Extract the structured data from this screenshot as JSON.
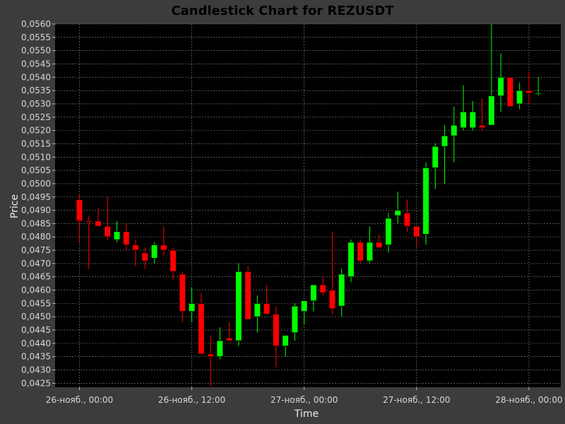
{
  "chart_data": {
    "type": "candlestick",
    "title": "Candlestick Chart for REZUSDT",
    "xlabel": "Time",
    "ylabel": "Price",
    "ylim": [
      0.04235,
      0.056
    ],
    "y_ticks": [
      "0,0425",
      "0,0430",
      "0,0435",
      "0,0440",
      "0,0445",
      "0,0450",
      "0,0455",
      "0,0460",
      "0,0465",
      "0,0470",
      "0,0475",
      "0,0480",
      "0,0485",
      "0,0490",
      "0,0495",
      "0,0500",
      "0,0505",
      "0,0510",
      "0,0515",
      "0,0520",
      "0,0525",
      "0,0530",
      "0,0535",
      "0,0540",
      "0,0545",
      "0,0550",
      "0,0555",
      "0,0560"
    ],
    "y_tick_values": [
      0.0425,
      0.043,
      0.0435,
      0.044,
      0.0445,
      0.045,
      0.0455,
      0.046,
      0.0465,
      0.047,
      0.0475,
      0.048,
      0.0485,
      0.049,
      0.0495,
      0.05,
      0.0505,
      0.051,
      0.0515,
      0.052,
      0.0525,
      0.053,
      0.0535,
      0.054,
      0.0545,
      0.055,
      0.0555,
      0.056
    ],
    "x_ticks": [
      {
        "label": "26-нояб., 00:00",
        "hours": 0
      },
      {
        "label": "26-нояб., 12:00",
        "hours": 12
      },
      {
        "label": "27-нояб., 00:00",
        "hours": 24
      },
      {
        "label": "27-нояб., 12:00",
        "hours": 36
      },
      {
        "label": "28-нояб., 00:00",
        "hours": 48
      }
    ],
    "xlim_hours": [
      -2.6,
      51.4
    ],
    "grid": true,
    "up_color": "#00ff00",
    "down_color": "#ff0000",
    "background": "#000000",
    "grid_color": "#8a8a8a",
    "candles": [
      {
        "t": 0,
        "o": 0.0494,
        "h": 0.0496,
        "l": 0.0478,
        "c": 0.0486
      },
      {
        "t": 1,
        "o": 0.0486,
        "h": 0.0488,
        "l": 0.0468,
        "c": 0.04855
      },
      {
        "t": 2,
        "o": 0.0486,
        "h": 0.0491,
        "l": 0.0484,
        "c": 0.0484
      },
      {
        "t": 3,
        "o": 0.0484,
        "h": 0.0495,
        "l": 0.0479,
        "c": 0.048
      },
      {
        "t": 4,
        "o": 0.0479,
        "h": 0.0486,
        "l": 0.0478,
        "c": 0.0482
      },
      {
        "t": 5,
        "o": 0.0482,
        "h": 0.0485,
        "l": 0.0475,
        "c": 0.0477
      },
      {
        "t": 6,
        "o": 0.0477,
        "h": 0.0479,
        "l": 0.0469,
        "c": 0.0475
      },
      {
        "t": 7,
        "o": 0.0474,
        "h": 0.0476,
        "l": 0.0468,
        "c": 0.0471
      },
      {
        "t": 8,
        "o": 0.0472,
        "h": 0.0478,
        "l": 0.047,
        "c": 0.0477
      },
      {
        "t": 9,
        "o": 0.0477,
        "h": 0.0484,
        "l": 0.0473,
        "c": 0.0475
      },
      {
        "t": 10,
        "o": 0.0475,
        "h": 0.0476,
        "l": 0.0464,
        "c": 0.0467
      },
      {
        "t": 11,
        "o": 0.0466,
        "h": 0.0467,
        "l": 0.0448,
        "c": 0.0452
      },
      {
        "t": 12,
        "o": 0.0452,
        "h": 0.0461,
        "l": 0.0448,
        "c": 0.0455
      },
      {
        "t": 13,
        "o": 0.0455,
        "h": 0.0459,
        "l": 0.0436,
        "c": 0.0436
      },
      {
        "t": 14,
        "o": 0.0436,
        "h": 0.0443,
        "l": 0.0424,
        "c": 0.0435
      },
      {
        "t": 15,
        "o": 0.0435,
        "h": 0.0446,
        "l": 0.0434,
        "c": 0.0441
      },
      {
        "t": 16,
        "o": 0.0442,
        "h": 0.0448,
        "l": 0.0441,
        "c": 0.0441
      },
      {
        "t": 17,
        "o": 0.0441,
        "h": 0.047,
        "l": 0.0439,
        "c": 0.0467
      },
      {
        "t": 18,
        "o": 0.0467,
        "h": 0.0469,
        "l": 0.0449,
        "c": 0.0449
      },
      {
        "t": 19,
        "o": 0.045,
        "h": 0.0458,
        "l": 0.0444,
        "c": 0.0455
      },
      {
        "t": 20,
        "o": 0.0455,
        "h": 0.0462,
        "l": 0.0451,
        "c": 0.0451
      },
      {
        "t": 21,
        "o": 0.0451,
        "h": 0.0454,
        "l": 0.0431,
        "c": 0.0439
      },
      {
        "t": 22,
        "o": 0.0439,
        "h": 0.0443,
        "l": 0.0435,
        "c": 0.0443
      },
      {
        "t": 23,
        "o": 0.0444,
        "h": 0.0455,
        "l": 0.0441,
        "c": 0.0454
      },
      {
        "t": 24,
        "o": 0.0452,
        "h": 0.0456,
        "l": 0.0447,
        "c": 0.0456
      },
      {
        "t": 25,
        "o": 0.0456,
        "h": 0.0462,
        "l": 0.0452,
        "c": 0.0462
      },
      {
        "t": 26,
        "o": 0.0462,
        "h": 0.0465,
        "l": 0.0458,
        "c": 0.0459
      },
      {
        "t": 27,
        "o": 0.046,
        "h": 0.0482,
        "l": 0.0451,
        "c": 0.0453
      },
      {
        "t": 28,
        "o": 0.0454,
        "h": 0.0468,
        "l": 0.045,
        "c": 0.0466
      },
      {
        "t": 29,
        "o": 0.0465,
        "h": 0.0479,
        "l": 0.0463,
        "c": 0.0478
      },
      {
        "t": 30,
        "o": 0.0478,
        "h": 0.0479,
        "l": 0.047,
        "c": 0.0471
      },
      {
        "t": 31,
        "o": 0.0471,
        "h": 0.0484,
        "l": 0.047,
        "c": 0.0478
      },
      {
        "t": 32,
        "o": 0.0478,
        "h": 0.0481,
        "l": 0.0476,
        "c": 0.0476
      },
      {
        "t": 33,
        "o": 0.0477,
        "h": 0.0489,
        "l": 0.0474,
        "c": 0.0487
      },
      {
        "t": 34,
        "o": 0.0488,
        "h": 0.0497,
        "l": 0.0485,
        "c": 0.049
      },
      {
        "t": 35,
        "o": 0.0489,
        "h": 0.0494,
        "l": 0.0482,
        "c": 0.0484
      },
      {
        "t": 36,
        "o": 0.0484,
        "h": 0.0484,
        "l": 0.0476,
        "c": 0.048
      },
      {
        "t": 37,
        "o": 0.0481,
        "h": 0.0508,
        "l": 0.0477,
        "c": 0.0506
      },
      {
        "t": 38,
        "o": 0.0506,
        "h": 0.0515,
        "l": 0.0498,
        "c": 0.0514
      },
      {
        "t": 39,
        "o": 0.0514,
        "h": 0.0522,
        "l": 0.05,
        "c": 0.0518
      },
      {
        "t": 40,
        "o": 0.0518,
        "h": 0.0529,
        "l": 0.0508,
        "c": 0.0522
      },
      {
        "t": 41,
        "o": 0.0521,
        "h": 0.0537,
        "l": 0.052,
        "c": 0.0527
      },
      {
        "t": 42,
        "o": 0.0521,
        "h": 0.0531,
        "l": 0.052,
        "c": 0.0527
      },
      {
        "t": 43,
        "o": 0.0522,
        "h": 0.0532,
        "l": 0.052,
        "c": 0.0521
      },
      {
        "t": 44,
        "o": 0.0522,
        "h": 0.056,
        "l": 0.0522,
        "c": 0.0533
      },
      {
        "t": 45,
        "o": 0.0533,
        "h": 0.0549,
        "l": 0.0527,
        "c": 0.054
      },
      {
        "t": 46,
        "o": 0.054,
        "h": 0.054,
        "l": 0.0529,
        "c": 0.0529
      },
      {
        "t": 47,
        "o": 0.053,
        "h": 0.0538,
        "l": 0.0528,
        "c": 0.0535
      },
      {
        "t": 48,
        "o": 0.0535,
        "h": 0.0542,
        "l": 0.053,
        "c": 0.0534
      },
      {
        "t": 49,
        "o": 0.0534,
        "h": 0.054,
        "l": 0.0533,
        "c": 0.0534
      }
    ]
  }
}
